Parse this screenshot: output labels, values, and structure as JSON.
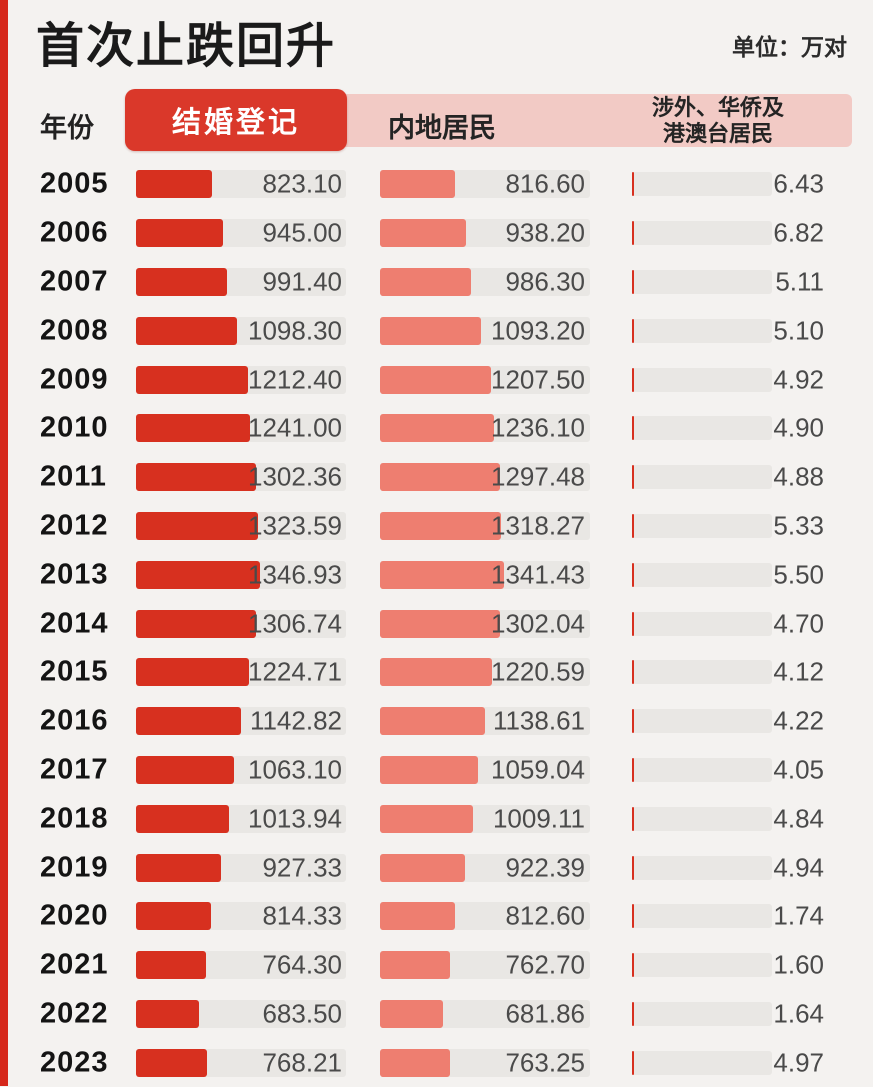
{
  "header": {
    "title": "首次止跌回升",
    "unit_label": "单位：万对"
  },
  "table_header": {
    "year_label": "年份",
    "col1_label": "结婚登记",
    "col2_label": "内地居民",
    "col3_label_line1": "涉外、华侨及",
    "col3_label_line2": "港澳台居民"
  },
  "colors": {
    "background": "#f4f2f0",
    "stripe_red": "#d6281b",
    "badge_red": "#da382a",
    "bar_red": "#d7301f",
    "bar_salmon": "#ee7e70",
    "banner_pink": "#f2cac5",
    "track_gray": "#e9e7e4",
    "title_text": "#1a1a1a",
    "value_text": "#4a4a4a"
  },
  "chart_data": {
    "type": "bar",
    "orientation": "horizontal",
    "title": "首次止跌回升",
    "unit": "万对",
    "axis_scale_max": 2280,
    "grid": false,
    "legend_position": "top",
    "categories": [
      "2005",
      "2006",
      "2007",
      "2008",
      "2009",
      "2010",
      "2011",
      "2012",
      "2013",
      "2014",
      "2015",
      "2016",
      "2017",
      "2018",
      "2019",
      "2020",
      "2021",
      "2022",
      "2023"
    ],
    "series": [
      {
        "name": "结婚登记",
        "values": [
          823.1,
          945.0,
          991.4,
          1098.3,
          1212.4,
          1241.0,
          1302.36,
          1323.59,
          1346.93,
          1306.74,
          1224.71,
          1142.82,
          1063.1,
          1013.94,
          927.33,
          814.33,
          764.3,
          683.5,
          768.21
        ]
      },
      {
        "name": "内地居民",
        "values": [
          816.6,
          938.2,
          986.3,
          1093.2,
          1207.5,
          1236.1,
          1297.48,
          1318.27,
          1341.43,
          1302.04,
          1220.59,
          1138.61,
          1059.04,
          1009.11,
          922.39,
          812.6,
          762.7,
          681.86,
          763.25
        ]
      },
      {
        "name": "涉外、华侨及港澳台居民",
        "values": [
          6.43,
          6.82,
          5.11,
          5.1,
          4.92,
          4.9,
          4.88,
          5.33,
          5.5,
          4.7,
          4.12,
          4.22,
          4.05,
          4.84,
          4.94,
          1.74,
          1.6,
          1.64,
          4.97
        ]
      }
    ]
  }
}
